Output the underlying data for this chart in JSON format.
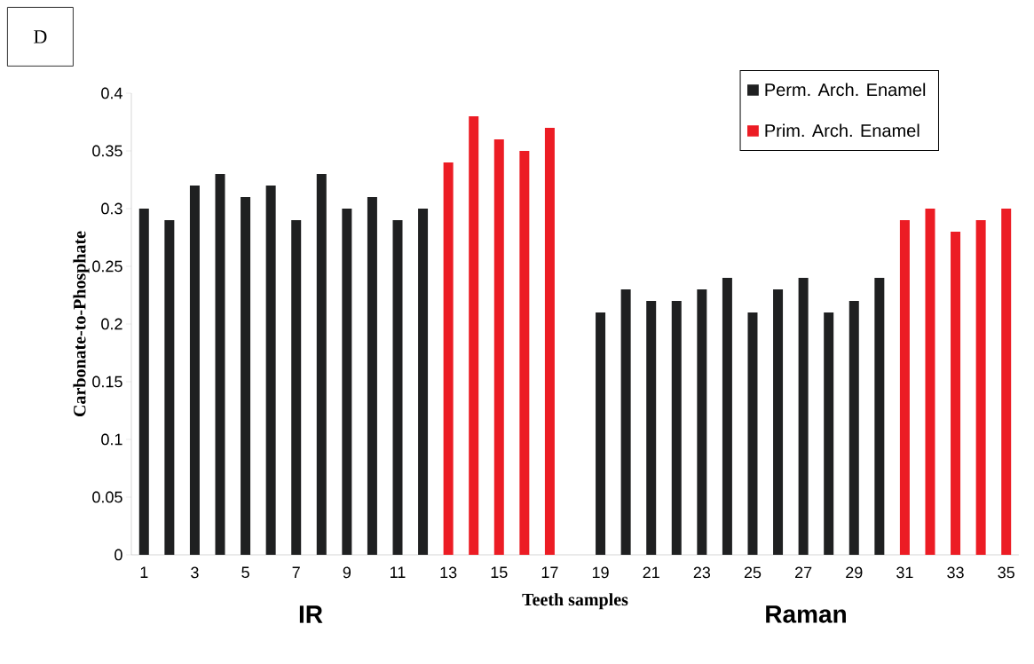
{
  "chart_data": {
    "type": "bar",
    "xlabel": "Teeth samples",
    "ylabel": "Carbonate-to-Phosphate",
    "categories": [
      "1",
      null,
      "3",
      null,
      "5",
      null,
      "7",
      null,
      "9",
      null,
      "11",
      null,
      "13",
      null,
      "15",
      null,
      "17",
      null,
      "19",
      null,
      "21",
      null,
      "23",
      null,
      "25",
      null,
      "27",
      null,
      "29",
      null,
      "31",
      null,
      "33",
      null,
      "35"
    ],
    "series": [
      {
        "name": "Perm. Arch.  Enamel",
        "color": "#1f2021",
        "values": [
          0.3,
          0.29,
          0.32,
          0.33,
          0.31,
          0.32,
          0.29,
          0.33,
          0.3,
          0.31,
          0.29,
          0.3,
          null,
          null,
          null,
          null,
          null,
          null,
          0.21,
          0.23,
          0.22,
          0.22,
          0.23,
          0.24,
          0.21,
          0.23,
          0.24,
          0.21,
          0.22,
          0.24,
          null,
          null,
          null,
          null,
          null
        ]
      },
      {
        "name": "Prim. Arch. Enamel",
        "color": "#ec1c24",
        "values": [
          null,
          null,
          null,
          null,
          null,
          null,
          null,
          null,
          null,
          null,
          null,
          null,
          0.34,
          0.38,
          0.36,
          0.35,
          0.37,
          null,
          null,
          null,
          null,
          null,
          null,
          null,
          null,
          null,
          null,
          null,
          null,
          null,
          0.29,
          0.3,
          0.28,
          0.29,
          0.3
        ]
      }
    ],
    "ylim": [
      0,
      0.4
    ],
    "yticks": [
      0,
      0.05,
      0.1,
      0.15,
      0.2,
      0.25,
      0.3,
      0.35,
      0.4
    ],
    "grid": false,
    "legend": "top right",
    "annotations": [
      "D",
      "IR",
      "Raman"
    ]
  }
}
